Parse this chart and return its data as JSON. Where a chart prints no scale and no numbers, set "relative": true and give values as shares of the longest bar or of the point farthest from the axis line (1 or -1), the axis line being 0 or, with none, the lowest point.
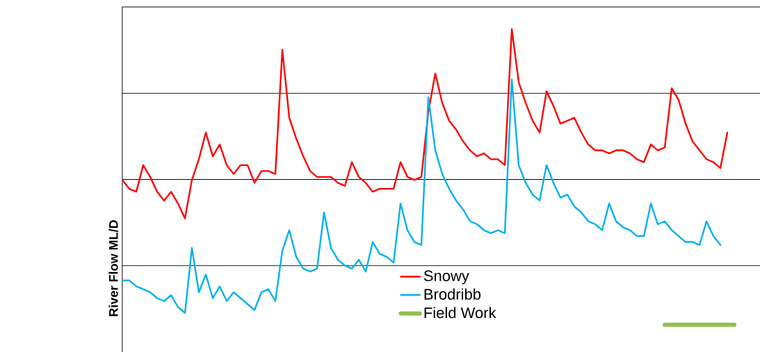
{
  "chart_data": {
    "type": "line",
    "relative": true,
    "ylabel": "River Flow   ML/D",
    "categories": [
      null,
      null,
      null,
      null,
      null,
      null,
      null,
      null,
      null,
      null,
      null,
      null,
      null,
      null,
      null,
      null,
      null,
      null,
      null,
      null,
      null,
      null,
      null,
      null,
      null,
      null,
      null,
      null,
      null,
      null,
      null,
      null,
      null,
      null,
      null,
      null,
      null,
      null,
      null,
      null,
      null,
      null,
      null,
      null,
      null,
      null,
      null,
      null,
      null,
      null,
      null,
      null,
      null,
      null,
      null,
      null,
      null,
      null,
      null,
      null,
      null,
      null,
      null,
      null,
      null,
      null,
      null,
      null,
      null,
      null,
      null,
      null,
      null,
      null,
      null,
      null,
      null,
      null,
      null,
      null,
      null,
      null,
      null,
      null,
      null,
      null,
      null,
      null,
      null
    ],
    "series": [
      {
        "name": "Snowy",
        "color": "#ff0000",
        "values": [
          0.49,
          0.46,
          0.45,
          0.54,
          0.5,
          0.45,
          0.42,
          0.45,
          0.41,
          0.36,
          0.49,
          0.56,
          0.65,
          0.57,
          0.61,
          0.54,
          0.51,
          0.54,
          0.54,
          0.48,
          0.52,
          0.52,
          0.51,
          0.93,
          0.7,
          0.63,
          0.57,
          0.52,
          0.5,
          0.5,
          0.5,
          0.48,
          0.47,
          0.55,
          0.5,
          0.48,
          0.45,
          0.46,
          0.46,
          0.46,
          0.55,
          0.5,
          0.49,
          0.5,
          0.72,
          0.85,
          0.75,
          0.69,
          0.66,
          0.62,
          0.59,
          0.57,
          0.58,
          0.56,
          0.56,
          0.54,
          1.0,
          0.82,
          0.75,
          0.69,
          0.65,
          0.79,
          0.74,
          0.68,
          0.69,
          0.7,
          0.65,
          0.61,
          0.59,
          0.59,
          0.58,
          0.59,
          0.59,
          0.58,
          0.56,
          0.55,
          0.61,
          0.59,
          0.6,
          0.8,
          0.76,
          0.68,
          0.62,
          0.59,
          0.56,
          0.55,
          0.53,
          0.65,
          null
        ]
      },
      {
        "name": "Brodribb",
        "color": "#00b0f0",
        "values": [
          0.15,
          0.15,
          0.13,
          0.12,
          0.11,
          0.09,
          0.08,
          0.1,
          0.06,
          0.04,
          0.26,
          0.11,
          0.17,
          0.09,
          0.13,
          0.08,
          0.11,
          0.09,
          0.07,
          0.05,
          0.11,
          0.12,
          0.08,
          0.25,
          0.32,
          0.23,
          0.19,
          0.18,
          0.19,
          0.38,
          0.26,
          0.22,
          0.2,
          0.19,
          0.22,
          0.18,
          0.28,
          0.24,
          0.23,
          0.21,
          0.41,
          0.32,
          0.28,
          0.27,
          0.77,
          0.59,
          0.51,
          0.46,
          0.42,
          0.39,
          0.35,
          0.34,
          0.32,
          0.31,
          0.32,
          0.31,
          0.83,
          0.54,
          0.48,
          0.44,
          0.42,
          0.54,
          0.48,
          0.43,
          0.44,
          0.4,
          0.38,
          0.35,
          0.34,
          0.32,
          0.41,
          0.35,
          0.33,
          0.32,
          0.3,
          0.3,
          0.41,
          0.34,
          0.35,
          0.32,
          0.3,
          0.28,
          0.28,
          0.27,
          0.35,
          0.3,
          0.27,
          null,
          null
        ]
      },
      {
        "name": "Field Work",
        "color": "#92c050",
        "values": [
          null,
          null,
          null,
          null,
          null,
          null,
          null,
          null,
          null,
          null,
          null,
          null,
          null,
          null,
          null,
          null,
          null,
          null,
          null,
          null,
          null,
          null,
          null,
          null,
          null,
          null,
          null,
          null,
          null,
          null,
          null,
          null,
          null,
          null,
          null,
          null,
          null,
          null,
          null,
          null,
          null,
          null,
          null,
          null,
          null,
          null,
          null,
          null,
          null,
          null,
          null,
          null,
          null,
          null,
          null,
          null,
          null,
          null,
          null,
          null,
          null,
          null,
          null,
          null,
          null,
          null,
          null,
          null,
          null,
          null,
          null,
          null,
          null,
          null,
          null,
          null,
          null,
          null,
          0,
          0,
          0,
          0,
          0,
          0,
          0,
          0,
          0,
          0,
          0
        ]
      }
    ],
    "grid": "y",
    "legend": "bottom",
    "marker": "none",
    "line_style": "solid"
  }
}
